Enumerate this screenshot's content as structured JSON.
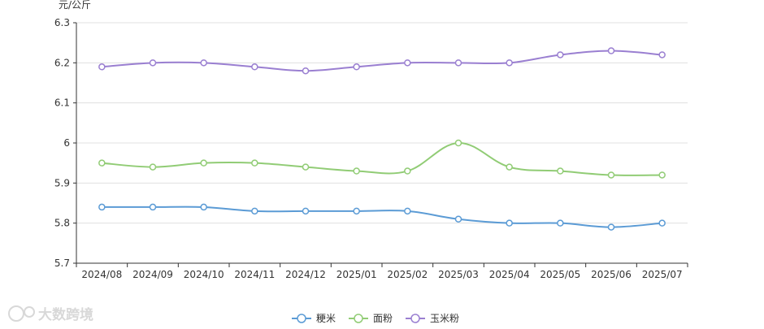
{
  "chart_data": {
    "type": "line",
    "unit_label": "元/公斤",
    "categories": [
      "2024/08",
      "2024/09",
      "2024/10",
      "2024/11",
      "2024/12",
      "2025/01",
      "2025/02",
      "2025/03",
      "2025/04",
      "2025/05",
      "2025/06",
      "2025/07"
    ],
    "ylim": [
      5.7,
      6.3
    ],
    "y_ticks": [
      "5.7",
      "5.8",
      "5.9",
      "6",
      "6.1",
      "6.2",
      "6.3"
    ],
    "grid": true,
    "legend_position": "bottom-center",
    "series": [
      {
        "name": "粳米",
        "color": "#5b9bd5",
        "values": [
          5.84,
          5.84,
          5.84,
          5.83,
          5.83,
          5.83,
          5.83,
          5.81,
          5.8,
          5.8,
          5.79,
          5.8
        ]
      },
      {
        "name": "面粉",
        "color": "#91cc75",
        "values": [
          5.95,
          5.94,
          5.95,
          5.95,
          5.94,
          5.93,
          5.93,
          6.0,
          5.94,
          5.93,
          5.92,
          5.92
        ]
      },
      {
        "name": "玉米粉",
        "color": "#9a7fd1",
        "values": [
          6.19,
          6.2,
          6.2,
          6.19,
          6.18,
          6.19,
          6.2,
          6.2,
          6.2,
          6.22,
          6.23,
          6.22
        ]
      }
    ]
  },
  "watermark": {
    "text": "大数跨境"
  }
}
